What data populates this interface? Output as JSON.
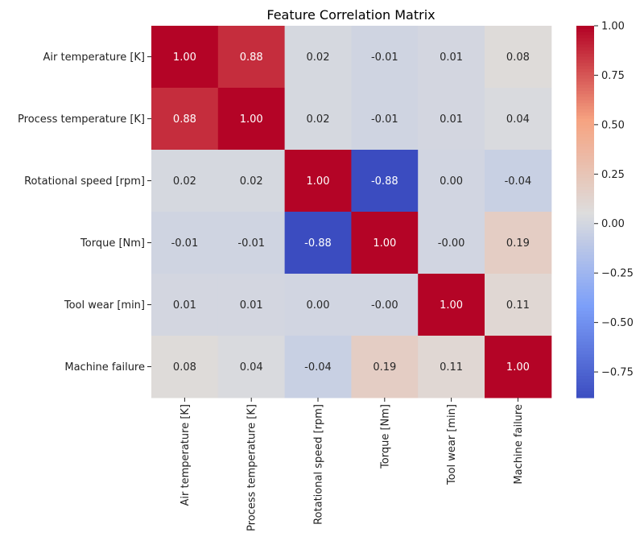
{
  "chart_data": {
    "type": "heatmap",
    "title": "Feature Correlation Matrix",
    "row_labels": [
      "Air temperature [K]",
      "Process temperature [K]",
      "Rotational speed [rpm]",
      "Torque [Nm]",
      "Tool wear [min]",
      "Machine failure"
    ],
    "col_labels": [
      "Air temperature [K]",
      "Process temperature [K]",
      "Rotational speed [rpm]",
      "Torque [Nm]",
      "Tool wear [min]",
      "Machine failure"
    ],
    "values": [
      [
        1.0,
        0.88,
        0.02,
        -0.01,
        0.01,
        0.08
      ],
      [
        0.88,
        1.0,
        0.02,
        -0.01,
        0.01,
        0.04
      ],
      [
        0.02,
        0.02,
        1.0,
        -0.88,
        0.0,
        -0.04
      ],
      [
        -0.01,
        -0.01,
        -0.88,
        1.0,
        -0.0,
        0.19
      ],
      [
        0.01,
        0.01,
        0.0,
        -0.0,
        1.0,
        0.11
      ],
      [
        0.08,
        0.04,
        -0.04,
        0.19,
        0.11,
        1.0
      ]
    ],
    "value_labels": [
      [
        "1.00",
        "0.88",
        "0.02",
        "-0.01",
        "0.01",
        "0.08"
      ],
      [
        "0.88",
        "1.00",
        "0.02",
        "-0.01",
        "0.01",
        "0.04"
      ],
      [
        "0.02",
        "0.02",
        "1.00",
        "-0.88",
        "0.00",
        "-0.04"
      ],
      [
        "-0.01",
        "-0.01",
        "-0.88",
        "1.00",
        "-0.00",
        "0.19"
      ],
      [
        "0.01",
        "0.01",
        "0.00",
        "-0.00",
        "1.00",
        "0.11"
      ],
      [
        "0.08",
        "0.04",
        "-0.04",
        "0.19",
        "0.11",
        "1.00"
      ]
    ],
    "colormap": "coolwarm",
    "vmin": -0.88,
    "vmax": 1.0,
    "colorbar": {
      "ticks": [
        1.0,
        0.75,
        0.5,
        0.25,
        0.0,
        -0.25,
        -0.5,
        -0.75
      ],
      "tick_labels": [
        "1.00",
        "0.75",
        "0.50",
        "0.25",
        "0.00",
        "−0.25",
        "−0.50",
        "−0.75"
      ],
      "placement": "right"
    },
    "annotated": true,
    "grid": false
  }
}
